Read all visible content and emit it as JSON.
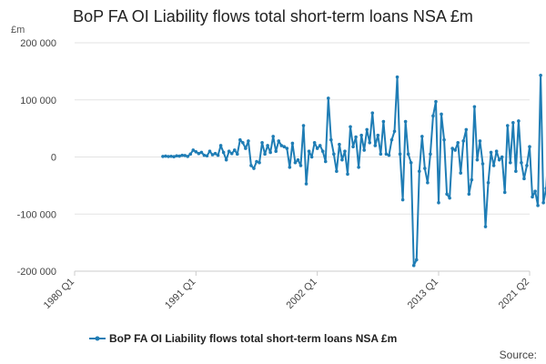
{
  "chart_data": {
    "type": "line",
    "title": "BoP FA OI Liability flows total short-term loans NSA £m",
    "ylabel": "£m",
    "xlabel": "",
    "ylim": [
      -200000,
      200000
    ],
    "yticks": [
      {
        "value": 200000,
        "label": "200 000"
      },
      {
        "value": 100000,
        "label": "100 000"
      },
      {
        "value": 0,
        "label": "0"
      },
      {
        "value": -100000,
        "label": "-100 000"
      },
      {
        "value": -200000,
        "label": "-200 000"
      }
    ],
    "xlim": [
      1980.0,
      2021.25
    ],
    "xticks": [
      {
        "value": 1980.0,
        "label": "1980 Q1"
      },
      {
        "value": 1991.0,
        "label": "1991 Q1"
      },
      {
        "value": 2002.0,
        "label": "2002 Q1"
      },
      {
        "value": 2013.0,
        "label": "2013 Q1"
      },
      {
        "value": 2021.25,
        "label": "2021 Q2"
      }
    ],
    "grid": true,
    "legend": "bottom",
    "color": "#1f7db5",
    "series": [
      {
        "name": "BoP FA OI Liability flows total short-term loans NSA £m",
        "start": 1988.0,
        "step": 0.25,
        "values": [
          1000,
          1500,
          800,
          1200,
          500,
          2000,
          1500,
          3000,
          2500,
          1000,
          5000,
          12000,
          9000,
          6000,
          8000,
          3000,
          2000,
          10000,
          4000,
          6000,
          3000,
          20000,
          8000,
          -5000,
          10000,
          6000,
          12000,
          5000,
          30000,
          25000,
          15000,
          28000,
          -15000,
          -20000,
          -8000,
          -10000,
          25000,
          5000,
          20000,
          8000,
          36000,
          10000,
          28000,
          20000,
          18000,
          15000,
          -18000,
          24000,
          -10000,
          -5000,
          -15000,
          55000,
          -47000,
          10000,
          0,
          25000,
          15000,
          20000,
          10000,
          -8000,
          103000,
          30000,
          5000,
          -25000,
          22000,
          -5000,
          10000,
          -30000,
          53000,
          18000,
          35000,
          -18000,
          38000,
          12000,
          48000,
          25000,
          77000,
          20000,
          38000,
          5000,
          62000,
          5000,
          3000,
          30000,
          45000,
          140000,
          5000,
          -75000,
          62000,
          5000,
          -10000,
          -190000,
          -180000,
          -25000,
          36000,
          -20000,
          -45000,
          5000,
          72000,
          97000,
          -80000,
          75000,
          30000,
          -65000,
          -72000,
          15000,
          12000,
          25000,
          -28000,
          28000,
          48000,
          -65000,
          -40000,
          88000,
          -5000,
          28000,
          -12000,
          -122000,
          -45000,
          8000,
          -15000,
          10000,
          -5000,
          0,
          -62000,
          55000,
          -10000,
          60000,
          -25000,
          63000,
          -10000,
          -38000,
          -15000,
          18000,
          -70000,
          -60000,
          -85000,
          143000,
          -80000,
          -55000,
          28000,
          5000,
          0,
          -10000
        ]
      }
    ]
  },
  "footer": {
    "source_label": "Source:"
  }
}
